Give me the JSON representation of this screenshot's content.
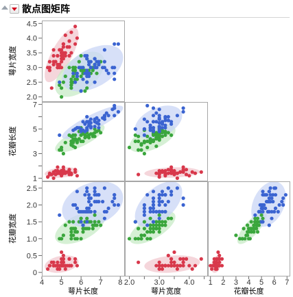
{
  "header": {
    "title": "散点图矩阵"
  },
  "colors": {
    "setosa": "#d8384b",
    "versicolor": "#3aa63c",
    "virginica": "#3b64d1",
    "setosa_ellipse": "#f2c8cf",
    "versicolor_ellipse": "#c8ebc7",
    "virginica_ellipse": "#c9d6f5",
    "frame": "#a6a6a6"
  },
  "chart_data": {
    "type": "scatter",
    "layout": "scatterplot-matrix-lower-triangle",
    "title": "散点图矩阵",
    "variables": [
      {
        "name": "萼片长度",
        "range": [
          4,
          8.2
        ],
        "ticks": [
          4,
          5,
          6,
          7,
          8
        ]
      },
      {
        "name": "萼片宽度",
        "range": [
          1.85,
          4.6
        ],
        "ticks": [
          2.0,
          2.5,
          3.0,
          3.5,
          4.0,
          4.5
        ],
        "tick_labels": [
          "2.0",
          "2.5",
          "3.0",
          "3.5",
          "4.0",
          "4.5"
        ],
        "x_tick_labels": [
          "2.0",
          "",
          "3.0",
          "",
          "4.0",
          ""
        ]
      },
      {
        "name": "花瓣长度",
        "range": [
          0.8,
          7.2
        ],
        "ticks": [
          1,
          2,
          3,
          4,
          5,
          6,
          7
        ],
        "y_tick_labels": [
          "1",
          "",
          "3",
          "",
          "5",
          "",
          "7"
        ]
      },
      {
        "name": "花瓣宽度",
        "range": [
          -0.1,
          2.7
        ],
        "ticks": [
          0,
          0.5,
          1.0,
          1.5,
          2.0,
          2.5
        ],
        "tick_labels": [
          "0",
          "0.5",
          "1.0",
          "1.5",
          "2.0",
          "2.5"
        ]
      }
    ],
    "row_variables": [
      1,
      2,
      3
    ],
    "col_variables": [
      0,
      1,
      2
    ],
    "ellipses": true,
    "groups": [
      {
        "key": "setosa",
        "points": [
          [
            5.1,
            3.5,
            1.4,
            0.2
          ],
          [
            4.9,
            3.0,
            1.4,
            0.2
          ],
          [
            4.7,
            3.2,
            1.3,
            0.2
          ],
          [
            4.6,
            3.1,
            1.5,
            0.2
          ],
          [
            5.0,
            3.6,
            1.4,
            0.2
          ],
          [
            5.4,
            3.9,
            1.7,
            0.4
          ],
          [
            4.6,
            3.4,
            1.4,
            0.3
          ],
          [
            5.0,
            3.4,
            1.5,
            0.2
          ],
          [
            4.4,
            2.9,
            1.4,
            0.2
          ],
          [
            4.9,
            3.1,
            1.5,
            0.1
          ],
          [
            5.4,
            3.7,
            1.5,
            0.2
          ],
          [
            4.8,
            3.4,
            1.6,
            0.2
          ],
          [
            4.8,
            3.0,
            1.4,
            0.1
          ],
          [
            4.3,
            3.0,
            1.1,
            0.1
          ],
          [
            5.8,
            4.0,
            1.2,
            0.2
          ],
          [
            5.7,
            4.4,
            1.5,
            0.4
          ],
          [
            5.4,
            3.9,
            1.3,
            0.4
          ],
          [
            5.1,
            3.5,
            1.4,
            0.3
          ],
          [
            5.7,
            3.8,
            1.7,
            0.3
          ],
          [
            5.1,
            3.8,
            1.5,
            0.3
          ],
          [
            5.4,
            3.4,
            1.7,
            0.2
          ],
          [
            5.1,
            3.7,
            1.5,
            0.4
          ],
          [
            4.6,
            3.6,
            1.0,
            0.2
          ],
          [
            5.1,
            3.3,
            1.7,
            0.5
          ],
          [
            4.8,
            3.4,
            1.9,
            0.2
          ],
          [
            5.0,
            3.0,
            1.6,
            0.2
          ],
          [
            5.0,
            3.4,
            1.6,
            0.4
          ],
          [
            5.2,
            3.5,
            1.5,
            0.2
          ],
          [
            5.2,
            3.4,
            1.4,
            0.2
          ],
          [
            4.7,
            3.2,
            1.6,
            0.2
          ],
          [
            4.8,
            3.1,
            1.6,
            0.2
          ],
          [
            5.4,
            3.4,
            1.5,
            0.4
          ],
          [
            5.2,
            4.1,
            1.5,
            0.1
          ],
          [
            5.5,
            4.2,
            1.4,
            0.2
          ],
          [
            4.9,
            3.1,
            1.5,
            0.2
          ],
          [
            5.0,
            3.2,
            1.2,
            0.2
          ],
          [
            5.5,
            3.5,
            1.3,
            0.2
          ],
          [
            4.9,
            3.6,
            1.4,
            0.1
          ],
          [
            4.4,
            3.0,
            1.3,
            0.2
          ],
          [
            5.1,
            3.4,
            1.5,
            0.2
          ],
          [
            5.0,
            3.5,
            1.3,
            0.3
          ],
          [
            4.5,
            2.3,
            1.3,
            0.3
          ],
          [
            4.4,
            3.2,
            1.3,
            0.2
          ],
          [
            5.0,
            3.5,
            1.6,
            0.6
          ],
          [
            5.1,
            3.8,
            1.9,
            0.4
          ],
          [
            4.8,
            3.0,
            1.4,
            0.3
          ],
          [
            5.1,
            3.8,
            1.6,
            0.2
          ],
          [
            4.6,
            3.2,
            1.4,
            0.2
          ],
          [
            5.3,
            3.7,
            1.5,
            0.2
          ],
          [
            5.0,
            3.3,
            1.4,
            0.2
          ]
        ]
      },
      {
        "key": "versicolor",
        "points": [
          [
            7.0,
            3.2,
            4.7,
            1.4
          ],
          [
            6.4,
            3.2,
            4.5,
            1.5
          ],
          [
            6.9,
            3.1,
            4.9,
            1.5
          ],
          [
            5.5,
            2.3,
            4.0,
            1.3
          ],
          [
            6.5,
            2.8,
            4.6,
            1.5
          ],
          [
            5.7,
            2.8,
            4.5,
            1.3
          ],
          [
            6.3,
            3.3,
            4.7,
            1.6
          ],
          [
            4.9,
            2.4,
            3.3,
            1.0
          ],
          [
            6.6,
            2.9,
            4.6,
            1.3
          ],
          [
            5.2,
            2.7,
            3.9,
            1.4
          ],
          [
            5.0,
            2.0,
            3.5,
            1.0
          ],
          [
            5.9,
            3.0,
            4.2,
            1.5
          ],
          [
            6.0,
            2.2,
            4.0,
            1.0
          ],
          [
            6.1,
            2.9,
            4.7,
            1.4
          ],
          [
            5.6,
            2.9,
            3.6,
            1.3
          ],
          [
            6.7,
            3.1,
            4.4,
            1.4
          ],
          [
            5.6,
            3.0,
            4.5,
            1.5
          ],
          [
            5.8,
            2.7,
            4.1,
            1.0
          ],
          [
            6.2,
            2.2,
            4.5,
            1.5
          ],
          [
            5.6,
            2.5,
            3.9,
            1.1
          ],
          [
            5.9,
            3.2,
            4.8,
            1.8
          ],
          [
            6.1,
            2.8,
            4.0,
            1.3
          ],
          [
            6.3,
            2.5,
            4.9,
            1.5
          ],
          [
            6.1,
            2.8,
            4.7,
            1.2
          ],
          [
            6.4,
            2.9,
            4.3,
            1.3
          ],
          [
            6.6,
            3.0,
            4.4,
            1.4
          ],
          [
            6.8,
            2.8,
            4.8,
            1.4
          ],
          [
            6.7,
            3.0,
            5.0,
            1.7
          ],
          [
            6.0,
            2.9,
            4.5,
            1.5
          ],
          [
            5.7,
            2.6,
            3.5,
            1.0
          ],
          [
            5.5,
            2.4,
            3.8,
            1.1
          ],
          [
            5.5,
            2.4,
            3.7,
            1.0
          ],
          [
            5.8,
            2.7,
            3.9,
            1.2
          ],
          [
            6.0,
            2.7,
            5.1,
            1.6
          ],
          [
            5.4,
            3.0,
            4.5,
            1.5
          ],
          [
            6.0,
            3.4,
            4.5,
            1.6
          ],
          [
            6.7,
            3.1,
            4.7,
            1.5
          ],
          [
            6.3,
            2.3,
            4.4,
            1.3
          ],
          [
            5.6,
            3.0,
            4.1,
            1.3
          ],
          [
            5.5,
            2.5,
            4.0,
            1.3
          ],
          [
            5.5,
            2.6,
            4.4,
            1.2
          ],
          [
            6.1,
            3.0,
            4.6,
            1.4
          ],
          [
            5.8,
            2.6,
            4.0,
            1.2
          ],
          [
            5.0,
            2.3,
            3.3,
            1.0
          ],
          [
            5.6,
            2.7,
            4.2,
            1.3
          ],
          [
            5.7,
            3.0,
            4.2,
            1.2
          ],
          [
            5.7,
            2.9,
            4.2,
            1.3
          ],
          [
            6.2,
            2.9,
            4.3,
            1.3
          ],
          [
            5.1,
            2.5,
            3.0,
            1.1
          ],
          [
            5.7,
            2.8,
            4.1,
            1.3
          ]
        ]
      },
      {
        "key": "virginica",
        "points": [
          [
            6.3,
            3.3,
            6.0,
            2.5
          ],
          [
            5.8,
            2.7,
            5.1,
            1.9
          ],
          [
            7.1,
            3.0,
            5.9,
            2.1
          ],
          [
            6.3,
            2.9,
            5.6,
            1.8
          ],
          [
            6.5,
            3.0,
            5.8,
            2.2
          ],
          [
            7.6,
            3.0,
            6.6,
            2.1
          ],
          [
            4.9,
            2.5,
            4.5,
            1.7
          ],
          [
            7.3,
            2.9,
            6.3,
            1.8
          ],
          [
            6.7,
            2.5,
            5.8,
            1.8
          ],
          [
            7.2,
            3.6,
            6.1,
            2.5
          ],
          [
            6.5,
            3.2,
            5.1,
            2.0
          ],
          [
            6.4,
            2.7,
            5.3,
            1.9
          ],
          [
            6.8,
            3.0,
            5.5,
            2.1
          ],
          [
            5.7,
            2.5,
            5.0,
            2.0
          ],
          [
            5.8,
            2.8,
            5.1,
            2.4
          ],
          [
            6.4,
            3.2,
            5.3,
            2.3
          ],
          [
            6.5,
            3.0,
            5.5,
            1.8
          ],
          [
            7.7,
            3.8,
            6.7,
            2.2
          ],
          [
            7.7,
            2.6,
            6.9,
            2.3
          ],
          [
            6.0,
            2.2,
            5.0,
            1.5
          ],
          [
            6.9,
            3.2,
            5.7,
            2.3
          ],
          [
            5.6,
            2.8,
            4.9,
            2.0
          ],
          [
            7.7,
            2.8,
            6.7,
            2.0
          ],
          [
            6.3,
            2.7,
            4.9,
            1.8
          ],
          [
            6.7,
            3.3,
            5.7,
            2.1
          ],
          [
            7.2,
            3.2,
            6.0,
            1.8
          ],
          [
            6.2,
            2.8,
            4.8,
            1.8
          ],
          [
            6.1,
            3.0,
            4.9,
            1.8
          ],
          [
            6.4,
            2.8,
            5.6,
            2.1
          ],
          [
            7.2,
            3.0,
            5.8,
            1.6
          ],
          [
            7.4,
            2.8,
            6.1,
            1.9
          ],
          [
            7.9,
            3.8,
            6.4,
            2.0
          ],
          [
            6.4,
            2.8,
            5.6,
            2.2
          ],
          [
            6.3,
            2.8,
            5.1,
            1.5
          ],
          [
            6.1,
            2.6,
            5.6,
            1.4
          ],
          [
            7.7,
            3.0,
            6.1,
            2.3
          ],
          [
            6.3,
            3.4,
            5.6,
            2.4
          ],
          [
            6.4,
            3.1,
            5.5,
            1.8
          ],
          [
            6.0,
            3.0,
            4.8,
            1.8
          ],
          [
            6.9,
            3.1,
            5.4,
            2.1
          ],
          [
            6.7,
            3.1,
            5.6,
            2.4
          ],
          [
            6.9,
            3.1,
            5.1,
            2.3
          ],
          [
            5.8,
            2.7,
            5.1,
            1.9
          ],
          [
            6.8,
            3.2,
            5.9,
            2.3
          ],
          [
            6.7,
            3.3,
            5.7,
            2.5
          ],
          [
            6.7,
            3.0,
            5.2,
            2.3
          ],
          [
            6.3,
            2.5,
            5.0,
            1.9
          ],
          [
            6.5,
            3.0,
            5.2,
            2.0
          ],
          [
            6.2,
            3.4,
            5.4,
            2.3
          ],
          [
            5.9,
            3.0,
            5.1,
            1.8
          ]
        ]
      }
    ]
  }
}
